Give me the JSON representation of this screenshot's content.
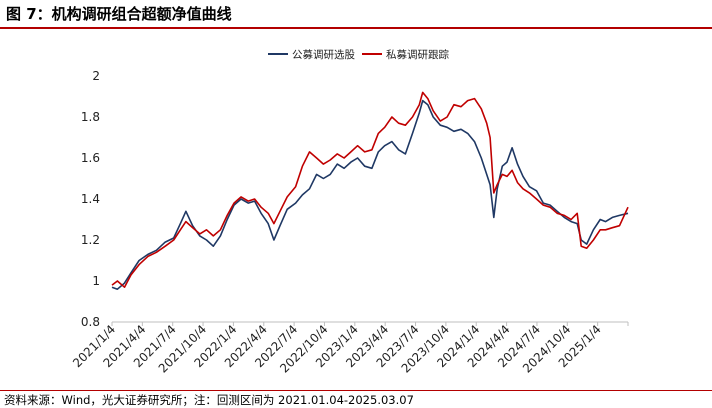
{
  "figure": {
    "title": "图 7：机构调研组合超额净值曲线",
    "source": "资料来源：Wind，光大证券研究所；注：回测区间为 2021.01.04-2025.03.07"
  },
  "chart_data": {
    "type": "line",
    "title": "",
    "xlabel": "",
    "ylabel": "",
    "x_range": [
      "2021-01-04",
      "2025-03-07"
    ],
    "ylim": [
      0.8,
      2.0
    ],
    "y_ticks": [
      0.8,
      1.0,
      1.2,
      1.4,
      1.6,
      1.8,
      2.0
    ],
    "y_tick_labels": [
      "0.8",
      "1",
      "1.2",
      "1.4",
      "1.6",
      "1.8",
      "2"
    ],
    "x_tick_labels": [
      "2021/1/4",
      "2021/4/4",
      "2021/7/4",
      "2021/10/4",
      "2022/1/4",
      "2022/4/4",
      "2022/7/4",
      "2022/10/4",
      "2023/1/4",
      "2023/4/4",
      "2023/7/4",
      "2023/10/4",
      "2024/1/4",
      "2024/4/4",
      "2024/7/4",
      "2024/10/4",
      "2025/1/4"
    ],
    "grid": false,
    "legend_position": "top-center",
    "series": [
      {
        "name": "公募调研选股",
        "color": "#1f3864",
        "points": [
          [
            "2021-01-04",
            0.97
          ],
          [
            "2021-01-20",
            0.96
          ],
          [
            "2021-02-10",
            0.99
          ],
          [
            "2021-03-01",
            1.04
          ],
          [
            "2021-03-25",
            1.1
          ],
          [
            "2021-04-20",
            1.13
          ],
          [
            "2021-05-15",
            1.15
          ],
          [
            "2021-06-10",
            1.19
          ],
          [
            "2021-07-05",
            1.21
          ],
          [
            "2021-07-25",
            1.28
          ],
          [
            "2021-08-10",
            1.34
          ],
          [
            "2021-08-30",
            1.27
          ],
          [
            "2021-09-20",
            1.22
          ],
          [
            "2021-10-10",
            1.2
          ],
          [
            "2021-10-30",
            1.17
          ],
          [
            "2021-11-20",
            1.22
          ],
          [
            "2021-12-10",
            1.3
          ],
          [
            "2021-12-30",
            1.37
          ],
          [
            "2022-01-20",
            1.4
          ],
          [
            "2022-02-10",
            1.38
          ],
          [
            "2022-03-01",
            1.39
          ],
          [
            "2022-03-20",
            1.33
          ],
          [
            "2022-04-10",
            1.28
          ],
          [
            "2022-04-27",
            1.2
          ],
          [
            "2022-05-15",
            1.27
          ],
          [
            "2022-06-05",
            1.35
          ],
          [
            "2022-06-30",
            1.38
          ],
          [
            "2022-07-20",
            1.42
          ],
          [
            "2022-08-10",
            1.45
          ],
          [
            "2022-08-31",
            1.52
          ],
          [
            "2022-09-20",
            1.5
          ],
          [
            "2022-10-10",
            1.52
          ],
          [
            "2022-10-31",
            1.57
          ],
          [
            "2022-11-20",
            1.55
          ],
          [
            "2022-12-10",
            1.58
          ],
          [
            "2022-12-30",
            1.6
          ],
          [
            "2023-01-20",
            1.56
          ],
          [
            "2023-02-10",
            1.55
          ],
          [
            "2023-03-01",
            1.63
          ],
          [
            "2023-03-20",
            1.66
          ],
          [
            "2023-04-10",
            1.68
          ],
          [
            "2023-04-30",
            1.64
          ],
          [
            "2023-05-20",
            1.62
          ],
          [
            "2023-06-10",
            1.72
          ],
          [
            "2023-06-30",
            1.82
          ],
          [
            "2023-07-10",
            1.88
          ],
          [
            "2023-07-25",
            1.86
          ],
          [
            "2023-08-10",
            1.8
          ],
          [
            "2023-08-31",
            1.76
          ],
          [
            "2023-09-20",
            1.75
          ],
          [
            "2023-10-10",
            1.73
          ],
          [
            "2023-10-31",
            1.74
          ],
          [
            "2023-11-20",
            1.72
          ],
          [
            "2023-12-10",
            1.68
          ],
          [
            "2023-12-30",
            1.6
          ],
          [
            "2024-01-15",
            1.52
          ],
          [
            "2024-01-25",
            1.47
          ],
          [
            "2024-02-05",
            1.31
          ],
          [
            "2024-02-15",
            1.45
          ],
          [
            "2024-03-01",
            1.56
          ],
          [
            "2024-03-15",
            1.58
          ],
          [
            "2024-03-30",
            1.65
          ],
          [
            "2024-04-15",
            1.57
          ],
          [
            "2024-05-01",
            1.51
          ],
          [
            "2024-05-20",
            1.46
          ],
          [
            "2024-06-10",
            1.44
          ],
          [
            "2024-06-30",
            1.38
          ],
          [
            "2024-07-20",
            1.37
          ],
          [
            "2024-08-10",
            1.34
          ],
          [
            "2024-08-31",
            1.31
          ],
          [
            "2024-09-20",
            1.29
          ],
          [
            "2024-10-08",
            1.28
          ],
          [
            "2024-10-20",
            1.2
          ],
          [
            "2024-11-05",
            1.18
          ],
          [
            "2024-11-25",
            1.25
          ],
          [
            "2024-12-15",
            1.3
          ],
          [
            "2024-12-31",
            1.29
          ],
          [
            "2025-01-20",
            1.31
          ],
          [
            "2025-02-10",
            1.32
          ],
          [
            "2025-03-07",
            1.33
          ]
        ]
      },
      {
        "name": "私募调研跟踪",
        "color": "#c00000",
        "points": [
          [
            "2021-01-04",
            0.98
          ],
          [
            "2021-01-20",
            1.0
          ],
          [
            "2021-02-10",
            0.97
          ],
          [
            "2021-03-01",
            1.03
          ],
          [
            "2021-03-25",
            1.08
          ],
          [
            "2021-04-20",
            1.12
          ],
          [
            "2021-05-15",
            1.14
          ],
          [
            "2021-06-10",
            1.17
          ],
          [
            "2021-07-05",
            1.2
          ],
          [
            "2021-07-25",
            1.25
          ],
          [
            "2021-08-10",
            1.29
          ],
          [
            "2021-08-30",
            1.26
          ],
          [
            "2021-09-20",
            1.23
          ],
          [
            "2021-10-10",
            1.25
          ],
          [
            "2021-10-30",
            1.22
          ],
          [
            "2021-11-20",
            1.25
          ],
          [
            "2021-12-10",
            1.32
          ],
          [
            "2021-12-30",
            1.38
          ],
          [
            "2022-01-20",
            1.41
          ],
          [
            "2022-02-10",
            1.39
          ],
          [
            "2022-03-01",
            1.4
          ],
          [
            "2022-03-20",
            1.36
          ],
          [
            "2022-04-10",
            1.33
          ],
          [
            "2022-04-27",
            1.28
          ],
          [
            "2022-05-15",
            1.34
          ],
          [
            "2022-06-05",
            1.41
          ],
          [
            "2022-06-30",
            1.46
          ],
          [
            "2022-07-20",
            1.56
          ],
          [
            "2022-08-10",
            1.63
          ],
          [
            "2022-08-31",
            1.6
          ],
          [
            "2022-09-20",
            1.57
          ],
          [
            "2022-10-10",
            1.59
          ],
          [
            "2022-10-31",
            1.62
          ],
          [
            "2022-11-20",
            1.6
          ],
          [
            "2022-12-10",
            1.63
          ],
          [
            "2022-12-30",
            1.66
          ],
          [
            "2023-01-20",
            1.63
          ],
          [
            "2023-02-10",
            1.64
          ],
          [
            "2023-03-01",
            1.72
          ],
          [
            "2023-03-20",
            1.75
          ],
          [
            "2023-04-10",
            1.8
          ],
          [
            "2023-04-30",
            1.77
          ],
          [
            "2023-05-20",
            1.76
          ],
          [
            "2023-06-10",
            1.8
          ],
          [
            "2023-06-30",
            1.86
          ],
          [
            "2023-07-10",
            1.92
          ],
          [
            "2023-07-25",
            1.89
          ],
          [
            "2023-08-10",
            1.83
          ],
          [
            "2023-08-31",
            1.78
          ],
          [
            "2023-09-20",
            1.8
          ],
          [
            "2023-10-10",
            1.86
          ],
          [
            "2023-10-31",
            1.85
          ],
          [
            "2023-11-20",
            1.88
          ],
          [
            "2023-12-10",
            1.89
          ],
          [
            "2023-12-30",
            1.84
          ],
          [
            "2024-01-15",
            1.77
          ],
          [
            "2024-01-25",
            1.7
          ],
          [
            "2024-02-05",
            1.43
          ],
          [
            "2024-02-15",
            1.47
          ],
          [
            "2024-03-01",
            1.52
          ],
          [
            "2024-03-15",
            1.51
          ],
          [
            "2024-03-30",
            1.54
          ],
          [
            "2024-04-15",
            1.48
          ],
          [
            "2024-05-01",
            1.45
          ],
          [
            "2024-05-20",
            1.43
          ],
          [
            "2024-06-10",
            1.4
          ],
          [
            "2024-06-30",
            1.37
          ],
          [
            "2024-07-20",
            1.36
          ],
          [
            "2024-08-10",
            1.33
          ],
          [
            "2024-08-31",
            1.32
          ],
          [
            "2024-09-20",
            1.3
          ],
          [
            "2024-10-08",
            1.33
          ],
          [
            "2024-10-20",
            1.17
          ],
          [
            "2024-11-05",
            1.16
          ],
          [
            "2024-11-25",
            1.2
          ],
          [
            "2024-12-15",
            1.25
          ],
          [
            "2024-12-31",
            1.25
          ],
          [
            "2025-01-20",
            1.26
          ],
          [
            "2025-02-10",
            1.27
          ],
          [
            "2025-03-07",
            1.36
          ]
        ]
      }
    ]
  }
}
